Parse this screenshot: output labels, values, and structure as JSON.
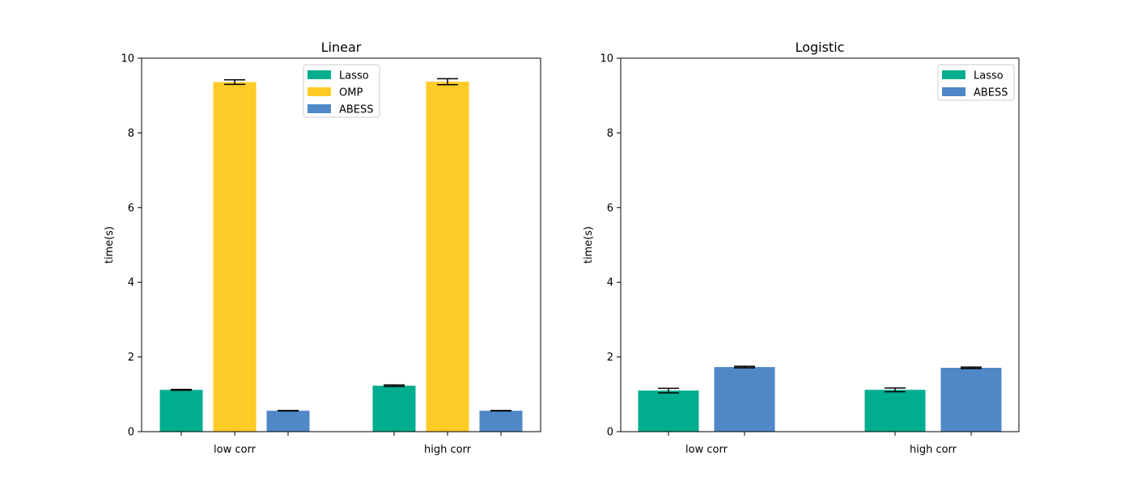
{
  "colors": {
    "Lasso": "#00ad8f",
    "OMP": "#ffcb27",
    "ABESS": "#4f87c7"
  },
  "chart_data": [
    {
      "type": "bar",
      "title": "Linear",
      "xlabel": "",
      "ylabel": "time(s)",
      "ylim": [
        0,
        10
      ],
      "yticks": [
        "0",
        "2",
        "4",
        "6",
        "8",
        "10"
      ],
      "categories": [
        "low corr",
        "high corr"
      ],
      "legend_position": "upper-center",
      "grid": false,
      "series": [
        {
          "name": "Lasso",
          "values": [
            1.12,
            1.23
          ],
          "errors": [
            0.01,
            0.02
          ]
        },
        {
          "name": "OMP",
          "values": [
            9.36,
            9.37
          ],
          "errors": [
            0.06,
            0.08
          ]
        },
        {
          "name": "ABESS",
          "values": [
            0.56,
            0.56
          ],
          "errors": [
            0.005,
            0.005
          ]
        }
      ]
    },
    {
      "type": "bar",
      "title": "Logistic",
      "xlabel": "",
      "ylabel": "time(s)",
      "ylim": [
        0,
        10
      ],
      "yticks": [
        "0",
        "2",
        "4",
        "6",
        "8",
        "10"
      ],
      "categories": [
        "low corr",
        "high corr"
      ],
      "legend_position": "upper-right",
      "grid": false,
      "series": [
        {
          "name": "Lasso",
          "values": [
            1.1,
            1.12
          ],
          "errors": [
            0.06,
            0.05
          ]
        },
        {
          "name": "ABESS",
          "values": [
            1.73,
            1.71
          ],
          "errors": [
            0.02,
            0.02
          ]
        }
      ]
    }
  ]
}
